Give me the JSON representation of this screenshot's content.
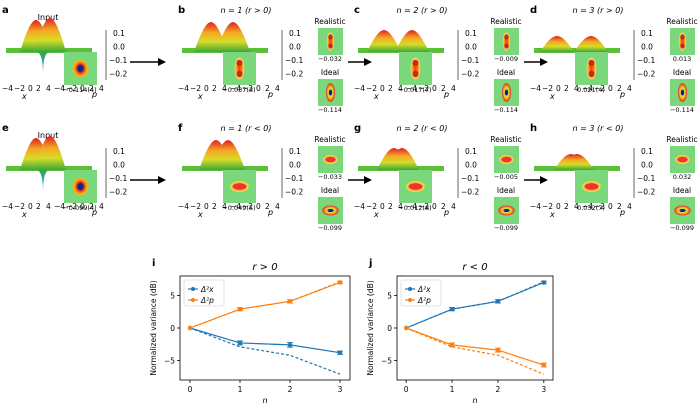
{
  "chart_data": [
    {
      "type": "surface-panels",
      "rows": [
        {
          "panels": [
            {
              "letter": "a",
              "title": "Input",
              "kind": "input",
              "inset_value": "−0.114(4)"
            },
            {
              "letter": "b",
              "title": "n = 1 (r > 0)",
              "kind": "step",
              "inset_value": "−0.037(3)",
              "realistic_label": "Realistic",
              "realistic_value": "−0.032",
              "ideal_label": "Ideal",
              "ideal_value": "−0.114"
            },
            {
              "letter": "c",
              "title": "n = 2 (r > 0)",
              "kind": "step",
              "inset_value": "−0.017(7)",
              "realistic_label": "Realistic",
              "realistic_value": "−0.009",
              "ideal_label": "Ideal",
              "ideal_value": "−0.114"
            },
            {
              "letter": "d",
              "title": "n = 3 (r > 0)",
              "kind": "step",
              "inset_value": "0.021(4)",
              "realistic_label": "Realistic",
              "realistic_value": "0.013",
              "ideal_label": "Ideal",
              "ideal_value": "−0.114"
            }
          ]
        },
        {
          "panels": [
            {
              "letter": "e",
              "title": "Input",
              "kind": "input",
              "inset_value": "−0.099(4)"
            },
            {
              "letter": "f",
              "title": "n = 1 (r < 0)",
              "kind": "step",
              "inset_value": "−0.049(5)",
              "realistic_label": "Realistic",
              "realistic_value": "−0.033",
              "ideal_label": "Ideal",
              "ideal_value": "−0.099"
            },
            {
              "letter": "g",
              "title": "n = 2 (r < 0)",
              "kind": "step",
              "inset_value": "−0.012(8)",
              "realistic_label": "Realistic",
              "realistic_value": "−0.005",
              "ideal_label": "Ideal",
              "ideal_value": "−0.099"
            },
            {
              "letter": "h",
              "title": "n = 3 (r < 0)",
              "kind": "step",
              "inset_value": "0.032(7)",
              "realistic_label": "Realistic",
              "realistic_value": "0.032",
              "ideal_label": "Ideal",
              "ideal_value": "−0.099"
            }
          ]
        }
      ],
      "zaxis_ticks": [
        "0.1",
        "0.0",
        "−0.1",
        "−0.2"
      ],
      "x_ticks": [
        "−4",
        "−2",
        "0",
        "2",
        "4"
      ],
      "p_ticks": [
        "−4",
        "−2",
        "0",
        "2",
        "4"
      ],
      "x_label": "x",
      "p_label": "p"
    },
    {
      "type": "line",
      "letter": "i",
      "title": "r > 0",
      "xlabel": "n",
      "ylabel": "Normalized variance (dB)",
      "x": [
        0,
        1,
        2,
        3
      ],
      "xlim": [
        -0.2,
        3.2
      ],
      "ylim": [
        -8,
        8
      ],
      "xticks": [
        0,
        1,
        2,
        3
      ],
      "yticks": [
        -5,
        0,
        5
      ],
      "legend": [
        "Δ²x",
        "Δ²p"
      ],
      "series": [
        {
          "name": "Δ²x",
          "color": "#1f77b4",
          "values": [
            0,
            -2.3,
            -2.6,
            -3.8
          ],
          "errors": [
            0,
            0.3,
            0.35,
            0.25
          ]
        },
        {
          "name": "Δ²x ideal",
          "color": "#1f77b4",
          "dashed": true,
          "values": [
            0,
            -2.9,
            -4.2,
            -7.1
          ]
        },
        {
          "name": "Δ²p",
          "color": "#ff7f0e",
          "values": [
            0,
            2.9,
            4.1,
            7.0
          ],
          "errors": [
            0,
            0.25,
            0.25,
            0.2
          ]
        },
        {
          "name": "Δ²p ideal",
          "color": "#ff7f0e",
          "dashed": true,
          "values": [
            0,
            2.9,
            4.1,
            7.1
          ]
        }
      ]
    },
    {
      "type": "line",
      "letter": "j",
      "title": "r < 0",
      "xlabel": "n",
      "ylabel": "Normalized variance (dB)",
      "x": [
        0,
        1,
        2,
        3
      ],
      "xlim": [
        -0.2,
        3.2
      ],
      "ylim": [
        -8,
        8
      ],
      "xticks": [
        0,
        1,
        2,
        3
      ],
      "yticks": [
        -5,
        0,
        5
      ],
      "legend": [
        "Δ²x",
        "Δ²p"
      ],
      "series": [
        {
          "name": "Δ²x",
          "color": "#1f77b4",
          "values": [
            0,
            2.9,
            4.1,
            7.0
          ],
          "errors": [
            0,
            0.25,
            0.25,
            0.2
          ]
        },
        {
          "name": "Δ²x ideal",
          "color": "#1f77b4",
          "dashed": true,
          "values": [
            0,
            2.9,
            4.1,
            7.1
          ]
        },
        {
          "name": "Δ²p",
          "color": "#ff7f0e",
          "values": [
            0,
            -2.6,
            -3.4,
            -5.7
          ],
          "errors": [
            0,
            0.3,
            0.3,
            0.3
          ]
        },
        {
          "name": "Δ²p ideal",
          "color": "#ff7f0e",
          "dashed": true,
          "values": [
            0,
            -2.9,
            -4.2,
            -7.1
          ]
        }
      ]
    }
  ]
}
